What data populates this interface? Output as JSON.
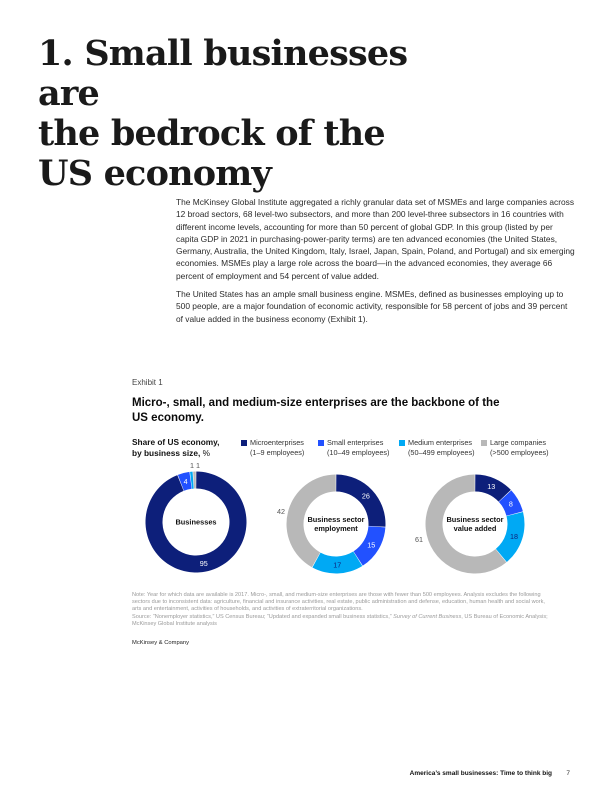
{
  "page": {
    "title_lines": [
      "1. Small businesses are",
      "the bedrock of the",
      "US economy"
    ],
    "paragraphs": [
      "The McKinsey Global Institute aggregated a richly granular data set of MSMEs and large companies across 12 broad sectors, 68 level-two subsectors, and more than 200 level-three subsectors in 16 countries with different income levels, accounting for more than 50 percent of global GDP. In this group (listed by per capita GDP in 2021 in purchasing-power-parity terms) are ten advanced economies (the United States, Germany, Australia, the United Kingdom, Italy, Israel, Japan, Spain, Poland, and Portugal) and six emerging economies. MSMEs play a large role across the board—in the advanced economies, they average 66 percent of employment and 54 percent of value added.",
      "The United States has an ample small business engine. MSMEs, defined as businesses employing up to 500 people, are a major foundation of economic activity, responsible for 58 percent of jobs and 39 percent of value added in the business economy (Exhibit 1)."
    ]
  },
  "exhibit": {
    "label": "Exhibit 1",
    "title": "Micro-, small, and medium-size enterprises are the backbone of the US economy.",
    "share_label_line1": "Share of US economy,",
    "share_label_line2": "by business size,",
    "share_label_unit": "%"
  },
  "legend": [
    {
      "name": "Microenterprises",
      "range": "(1–9 employees)",
      "color": "#0d1f7a"
    },
    {
      "name": "Small enterprises",
      "range": "(10–49 employees)",
      "color": "#2251ff"
    },
    {
      "name": "Medium enterprises",
      "range": "(50–499 employees)",
      "color": "#00a9f4"
    },
    {
      "name": "Large companies",
      "range": "(>500 employees)",
      "color": "#b8b8b8"
    }
  ],
  "chart_data": [
    {
      "type": "pie",
      "title": "Businesses",
      "categories": [
        "Microenterprises",
        "Small enterprises",
        "Medium enterprises",
        "Large companies"
      ],
      "values": [
        95,
        4,
        1,
        1
      ],
      "labels": [
        "95",
        "4",
        "1",
        "1"
      ]
    },
    {
      "type": "pie",
      "title": "Business sector employment",
      "categories": [
        "Microenterprises",
        "Small enterprises",
        "Medium enterprises",
        "Large companies"
      ],
      "values": [
        26,
        15,
        17,
        42
      ],
      "labels": [
        "26",
        "15",
        "17",
        "42"
      ]
    },
    {
      "type": "pie",
      "title": "Business sector value added",
      "categories": [
        "Microenterprises",
        "Small enterprises",
        "Medium enterprises",
        "Large companies"
      ],
      "values": [
        13,
        8,
        18,
        61
      ],
      "labels": [
        "13",
        "8",
        "18",
        "61"
      ]
    }
  ],
  "notes": {
    "note": "Note: Year for which data are available is 2017. Micro-, small, and medium-size enterprises are those with fewer than 500 employees. Analysis excludes the following sectors due to inconsistent data: agriculture, financial and insurance activities, real estate, public administration and defense, education, human health and social work, arts and entertainment, activities of households, and activities of extraterritorial organizations.",
    "source_prefix": "Source: “Nonemployer statistics,” US Census Bureau; “Updated and expanded small business statistics,”",
    "source_italic": "Survey of Current Business",
    "source_suffix": ", US Bureau of Economic Analysis; McKinsey Global Institute analysis"
  },
  "company": "McKinsey & Company",
  "footer": {
    "title": "America’s small businesses: Time to think big",
    "page_number": "7"
  }
}
